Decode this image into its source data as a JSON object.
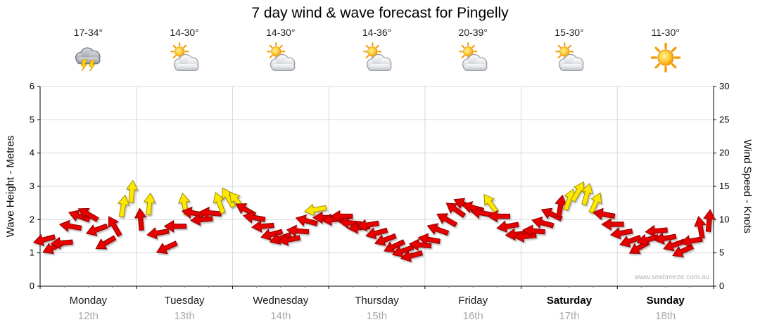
{
  "title": "7 day wind & wave forecast for Pingelly",
  "watermark": "www.seabreeze.com.au",
  "axes": {
    "left_label": "Wave Height - Metres",
    "right_label": "Wind Speed - Knots"
  },
  "days": [
    {
      "name": "Monday",
      "date": "12th",
      "temp": "17-34°",
      "icon": "storm",
      "bold": false
    },
    {
      "name": "Tuesday",
      "date": "13th",
      "temp": "14-30°",
      "icon": "partly-cloudy",
      "bold": false
    },
    {
      "name": "Wednesday",
      "date": "14th",
      "temp": "14-30°",
      "icon": "partly-cloudy",
      "bold": false
    },
    {
      "name": "Thursday",
      "date": "15th",
      "temp": "14-36°",
      "icon": "partly-cloudy",
      "bold": false
    },
    {
      "name": "Friday",
      "date": "16th",
      "temp": "20-39°",
      "icon": "partly-cloudy",
      "bold": false
    },
    {
      "name": "Saturday",
      "date": "17th",
      "temp": "15-30°",
      "icon": "partly-cloudy",
      "bold": true
    },
    {
      "name": "Sunday",
      "date": "18th",
      "temp": "11-30°",
      "icon": "sunny",
      "bold": true
    }
  ],
  "colors": {
    "arrow_red": "#e60000",
    "arrow_red_stroke": "#8f0000",
    "arrow_yellow": "#ffe800",
    "arrow_yellow_stroke": "#a09000",
    "grid": "#d9d9d9",
    "axis": "#000000",
    "minor_tick": "#8899bb",
    "date_gray": "#a8a8a8"
  },
  "chart_data": {
    "type": "scatter",
    "marker": "wind-arrow",
    "title": "7 day wind & wave forecast for Pingelly",
    "x_categories": [
      "Monday 12th",
      "Tuesday 13th",
      "Wednesday 14th",
      "Thursday 15th",
      "Friday 16th",
      "Saturday 17th",
      "Sunday 18th"
    ],
    "y_left": {
      "label": "Wave Height - Metres",
      "range": [
        0,
        6
      ],
      "ticks": [
        0,
        1,
        2,
        3,
        4,
        5,
        6
      ]
    },
    "y_right": {
      "label": "Wind Speed - Knots",
      "range": [
        0,
        30
      ],
      "ticks": [
        0,
        5,
        10,
        15,
        20,
        25,
        30
      ]
    },
    "grid": true,
    "arrow_format": [
      "wind_speed_knots",
      "direction_deg_math",
      "color"
    ],
    "arrows": [
      [
        7,
        195,
        "red"
      ],
      [
        5.8,
        205,
        "red"
      ],
      [
        6.5,
        185,
        "red"
      ],
      [
        9,
        170,
        "red"
      ],
      [
        10.5,
        160,
        "red"
      ],
      [
        10.8,
        150,
        "red"
      ],
      [
        8.5,
        200,
        "red"
      ],
      [
        6.5,
        210,
        "red"
      ],
      [
        9,
        120,
        "red"
      ],
      [
        12,
        80,
        "yellow"
      ],
      [
        14.2,
        85,
        "yellow"
      ],
      [
        10,
        95,
        "red"
      ],
      [
        12.3,
        85,
        "yellow"
      ],
      [
        8,
        190,
        "red"
      ],
      [
        5.8,
        205,
        "red"
      ],
      [
        9,
        180,
        "red"
      ],
      [
        12.3,
        100,
        "yellow"
      ],
      [
        11,
        170,
        "red"
      ],
      [
        10,
        185,
        "red"
      ],
      [
        11,
        175,
        "red"
      ],
      [
        12.5,
        110,
        "yellow"
      ],
      [
        13.3,
        120,
        "yellow"
      ],
      [
        12.8,
        130,
        "yellow"
      ],
      [
        11.5,
        150,
        "red"
      ],
      [
        10.3,
        170,
        "red"
      ],
      [
        9,
        185,
        "red"
      ],
      [
        7.8,
        195,
        "red"
      ],
      [
        7.2,
        200,
        "red"
      ],
      [
        7,
        190,
        "red"
      ],
      [
        8.3,
        175,
        "red"
      ],
      [
        9.8,
        165,
        "red"
      ],
      [
        11.5,
        190,
        "yellow"
      ],
      [
        10.3,
        180,
        "red"
      ],
      [
        10,
        185,
        "red"
      ],
      [
        10.5,
        180,
        "red"
      ],
      [
        9.5,
        175,
        "red"
      ],
      [
        8.8,
        185,
        "red"
      ],
      [
        9.2,
        190,
        "red"
      ],
      [
        8,
        195,
        "red"
      ],
      [
        7,
        200,
        "red"
      ],
      [
        6,
        205,
        "red"
      ],
      [
        5.3,
        200,
        "red"
      ],
      [
        4.6,
        195,
        "red"
      ],
      [
        6.2,
        175,
        "red"
      ],
      [
        7,
        170,
        "red"
      ],
      [
        8.5,
        160,
        "red"
      ],
      [
        10,
        150,
        "red"
      ],
      [
        11.5,
        145,
        "red"
      ],
      [
        12.3,
        155,
        "red"
      ],
      [
        11.8,
        165,
        "red"
      ],
      [
        11,
        170,
        "red"
      ],
      [
        12.4,
        125,
        "yellow"
      ],
      [
        10.5,
        180,
        "red"
      ],
      [
        9,
        190,
        "red"
      ],
      [
        7.8,
        185,
        "red"
      ],
      [
        7.5,
        185,
        "red"
      ],
      [
        8.3,
        175,
        "red"
      ],
      [
        9.5,
        165,
        "red"
      ],
      [
        10.8,
        155,
        "red"
      ],
      [
        12,
        80,
        "red"
      ],
      [
        13,
        70,
        "yellow"
      ],
      [
        14.2,
        60,
        "yellow"
      ],
      [
        13.8,
        75,
        "yellow"
      ],
      [
        12.5,
        65,
        "yellow"
      ],
      [
        10.8,
        170,
        "red"
      ],
      [
        9.3,
        180,
        "red"
      ],
      [
        8,
        190,
        "red"
      ],
      [
        6.8,
        200,
        "red"
      ],
      [
        5.8,
        210,
        "red"
      ],
      [
        7,
        195,
        "red"
      ],
      [
        8.3,
        185,
        "red"
      ],
      [
        7.2,
        190,
        "red"
      ],
      [
        6.2,
        200,
        "red"
      ],
      [
        5.3,
        205,
        "red"
      ],
      [
        6.8,
        190,
        "red"
      ],
      [
        8.8,
        100,
        "red"
      ],
      [
        9.8,
        85,
        "red"
      ]
    ]
  }
}
